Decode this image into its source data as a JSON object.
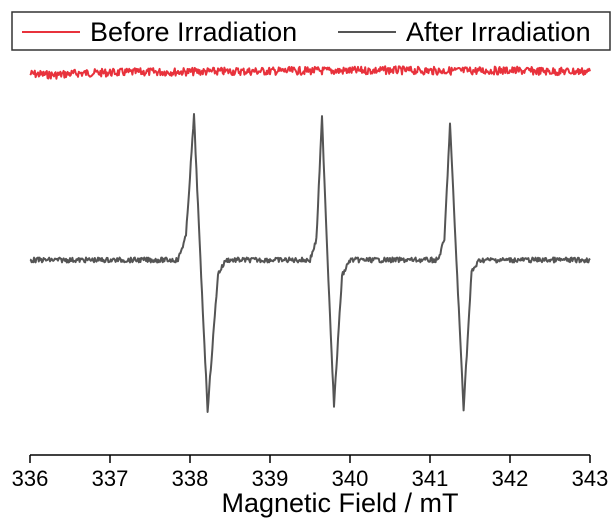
{
  "chart_data": {
    "type": "line",
    "xlabel": "Magnetic Field / mT",
    "ylabel": "",
    "xlim": [
      336,
      343
    ],
    "xticks": [
      "336",
      "337",
      "338",
      "339",
      "340",
      "341",
      "342",
      "343"
    ],
    "y_axis_shown": false,
    "grid": false,
    "legend_position": "top",
    "series": [
      {
        "name": "Before Irradiation",
        "color": "#e8323c",
        "points": [
          [
            336.0,
            0.95
          ],
          [
            336.3,
            0.93
          ],
          [
            336.6,
            0.96
          ],
          [
            337.0,
            0.97
          ],
          [
            337.5,
            0.98
          ],
          [
            338.0,
            0.985
          ],
          [
            338.5,
            0.99
          ],
          [
            339.0,
            0.995
          ],
          [
            339.5,
            1.0
          ],
          [
            340.0,
            1.0
          ],
          [
            340.5,
            1.01
          ],
          [
            341.0,
            1.0
          ],
          [
            341.5,
            1.0
          ],
          [
            342.0,
            1.005
          ],
          [
            342.5,
            0.99
          ],
          [
            343.0,
            0.99
          ]
        ]
      },
      {
        "name": "After Irradiation",
        "color": "#555555",
        "points": [
          [
            336.0,
            0.0
          ],
          [
            337.85,
            0.0
          ],
          [
            337.95,
            0.12
          ],
          [
            338.05,
            0.72
          ],
          [
            338.13,
            0.0
          ],
          [
            338.22,
            -0.75
          ],
          [
            338.35,
            -0.07
          ],
          [
            338.45,
            0.0
          ],
          [
            339.5,
            0.0
          ],
          [
            339.58,
            0.1
          ],
          [
            339.65,
            0.71
          ],
          [
            339.72,
            0.0
          ],
          [
            339.8,
            -0.73
          ],
          [
            339.9,
            -0.08
          ],
          [
            340.0,
            0.0
          ],
          [
            341.1,
            0.0
          ],
          [
            341.18,
            0.1
          ],
          [
            341.25,
            0.68
          ],
          [
            341.33,
            0.0
          ],
          [
            341.42,
            -0.74
          ],
          [
            341.52,
            -0.06
          ],
          [
            341.62,
            0.0
          ],
          [
            343.0,
            0.0
          ]
        ]
      }
    ]
  }
}
